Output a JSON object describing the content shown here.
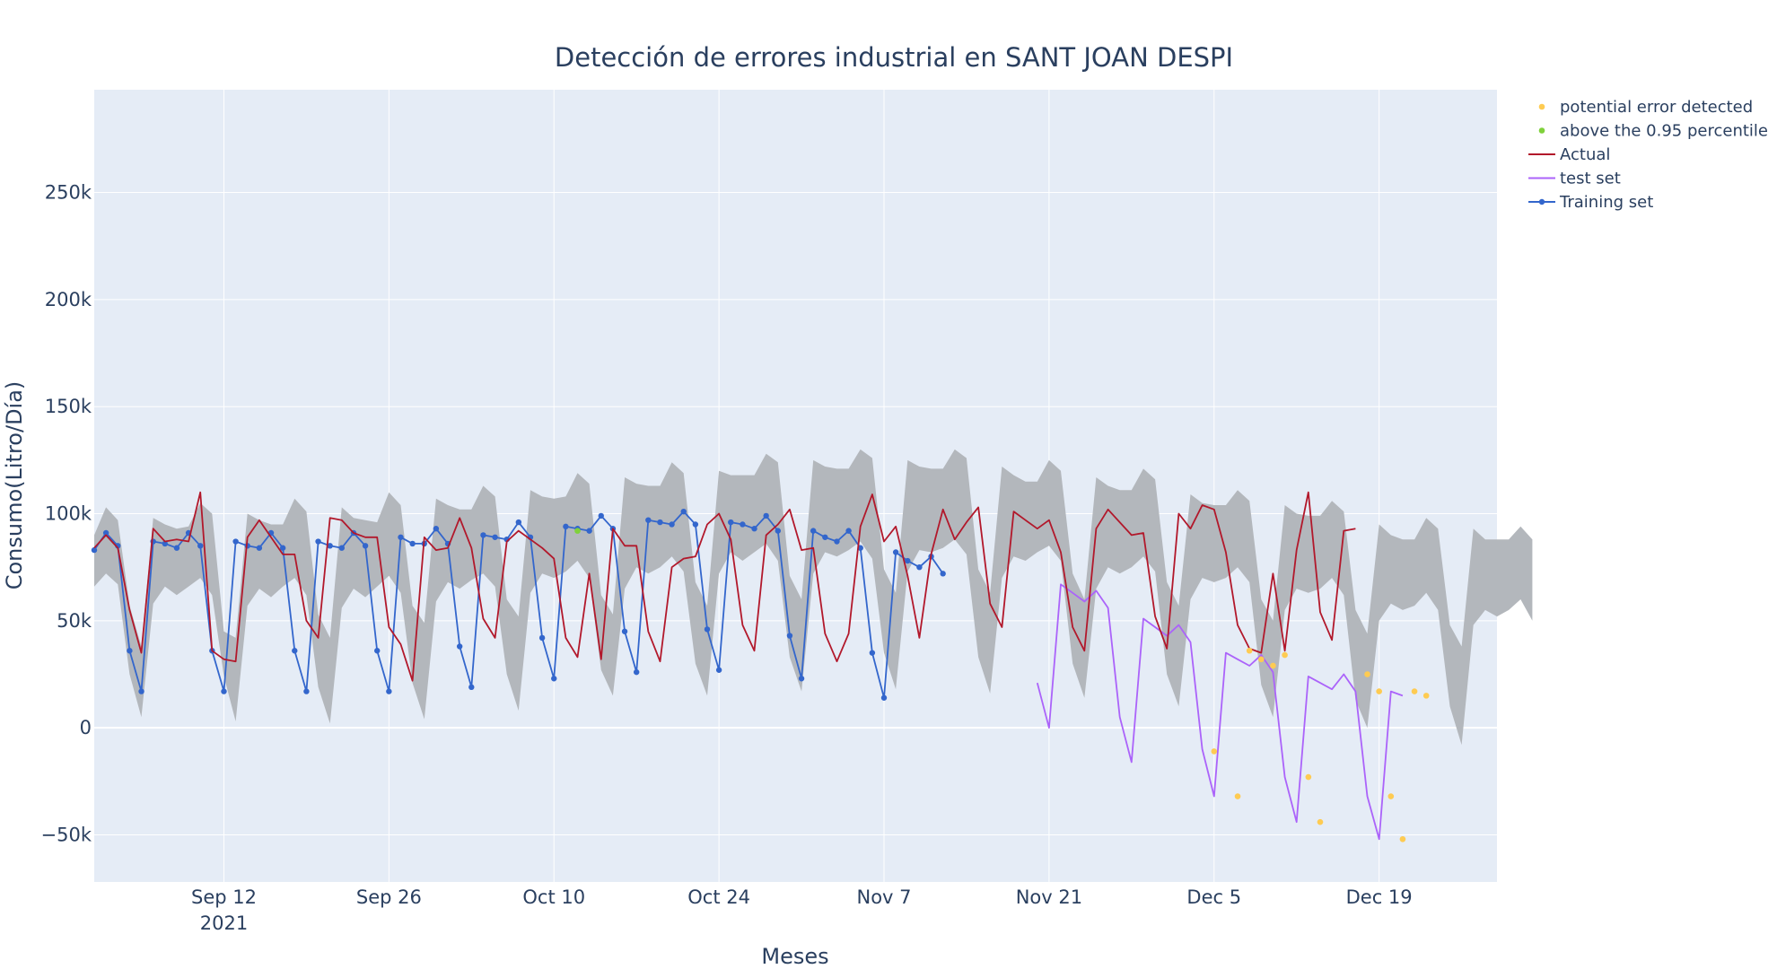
{
  "chart_data": {
    "type": "line",
    "title": "Detección de errores industrial en SANT JOAN DESPI",
    "xlabel": "Meses",
    "ylabel": "Consumo(Litro/Día)",
    "x_start": "2021-09-01",
    "x_range": [
      "2021-09-01",
      "2021-12-29"
    ],
    "ylim": [
      -72000,
      298000
    ],
    "x_ticks": [
      {
        "date": "2021-09-12",
        "label": "Sep 12",
        "sublabel": "2021"
      },
      {
        "date": "2021-09-26",
        "label": "Sep 26",
        "sublabel": ""
      },
      {
        "date": "2021-10-10",
        "label": "Oct 10",
        "sublabel": ""
      },
      {
        "date": "2021-10-24",
        "label": "Oct 24",
        "sublabel": ""
      },
      {
        "date": "2021-11-07",
        "label": "Nov 7",
        "sublabel": ""
      },
      {
        "date": "2021-11-21",
        "label": "Nov 21",
        "sublabel": ""
      },
      {
        "date": "2021-12-05",
        "label": "Dec 5",
        "sublabel": ""
      },
      {
        "date": "2021-12-19",
        "label": "Dec 19",
        "sublabel": ""
      }
    ],
    "y_ticks": [
      {
        "value": -50000,
        "label": "−50k"
      },
      {
        "value": 0,
        "label": "0"
      },
      {
        "value": 50000,
        "label": "50k"
      },
      {
        "value": 100000,
        "label": "100k"
      },
      {
        "value": 150000,
        "label": "150k"
      },
      {
        "value": 200000,
        "label": "200k"
      },
      {
        "value": 250000,
        "label": "250k"
      }
    ],
    "grid": true,
    "legend_position": "top-right outside",
    "colors": {
      "plot_bg": "#e5ecf6",
      "grid": "#ffffff",
      "band": "#b3b7bc",
      "actual": "#b2182b",
      "test": "#ab63fa",
      "training": "#3366cc",
      "error": "#fecb52",
      "percentile": "#7fd13b"
    },
    "band": {
      "name": "interval",
      "upper": [
        90000,
        103000,
        97000,
        57000,
        38000,
        98000,
        95000,
        93000,
        94000,
        105000,
        100000,
        45000,
        42000,
        100000,
        97000,
        95000,
        95000,
        107000,
        101000,
        53000,
        42000,
        103000,
        98000,
        97000,
        96000,
        110000,
        104000,
        57000,
        49000,
        107000,
        104000,
        102000,
        102000,
        113000,
        108000,
        60000,
        52000,
        111000,
        108000,
        107000,
        108000,
        119000,
        114000,
        62000,
        53000,
        117000,
        114000,
        113000,
        113000,
        124000,
        119000,
        68000,
        57000,
        120000,
        118000,
        118000,
        118000,
        128000,
        124000,
        71000,
        60000,
        125000,
        122000,
        121000,
        121000,
        130000,
        126000,
        74000,
        63000,
        125000,
        122000,
        121000,
        121000,
        130000,
        126000,
        74000,
        63000,
        122000,
        118000,
        115000,
        115000,
        125000,
        120000,
        72000,
        60000,
        117000,
        113000,
        111000,
        111000,
        121000,
        116000,
        68000,
        57000,
        109000,
        105000,
        104000,
        104000,
        111000,
        106000,
        60000,
        50000,
        104000,
        100000,
        99000,
        99000,
        106000,
        101000,
        55000,
        44000,
        95000,
        90000,
        88000,
        88000,
        98000,
        93000,
        48000,
        38000,
        93000,
        88000,
        88000,
        88000,
        94000,
        88000
      ],
      "lower": [
        66000,
        72000,
        67000,
        25000,
        5000,
        58000,
        66000,
        62000,
        66000,
        70000,
        62000,
        24000,
        3000,
        57000,
        65000,
        61000,
        66000,
        70000,
        62000,
        19000,
        2000,
        56000,
        65000,
        61000,
        66000,
        71000,
        63000,
        21000,
        4000,
        59000,
        68000,
        65000,
        69000,
        72000,
        66000,
        25000,
        8000,
        63000,
        72000,
        70000,
        73000,
        78000,
        70000,
        27000,
        15000,
        65000,
        75000,
        72000,
        75000,
        80000,
        73000,
        30000,
        15000,
        72000,
        82000,
        78000,
        82000,
        86000,
        78000,
        33000,
        17000,
        72000,
        82000,
        80000,
        83000,
        87000,
        79000,
        35000,
        18000,
        73000,
        83000,
        82000,
        84000,
        88000,
        81000,
        33000,
        16000,
        70000,
        80000,
        78000,
        82000,
        85000,
        78000,
        30000,
        14000,
        65000,
        75000,
        72000,
        75000,
        80000,
        73000,
        25000,
        10000,
        60000,
        70000,
        68000,
        70000,
        75000,
        68000,
        20000,
        5000,
        55000,
        65000,
        63000,
        65000,
        70000,
        62000,
        13000,
        0,
        50000,
        58000,
        55000,
        57000,
        63000,
        55000,
        10000,
        -8000,
        48000,
        55000,
        52000,
        55000,
        60000,
        50000
      ]
    },
    "series": [
      {
        "name": "Actual",
        "start": 0,
        "values": [
          84000,
          90000,
          84000,
          55000,
          35000,
          93000,
          87000,
          88000,
          87000,
          110000,
          36000,
          32000,
          31000,
          89000,
          97000,
          89000,
          81000,
          81000,
          50000,
          42000,
          98000,
          97000,
          91000,
          89000,
          89000,
          47000,
          39000,
          22000,
          89000,
          83000,
          84000,
          98000,
          84000,
          51000,
          42000,
          87000,
          92000,
          88000,
          84000,
          79000,
          42000,
          33000,
          72000,
          32000,
          93000,
          85000,
          85000,
          45000,
          31000,
          75000,
          79000,
          80000,
          95000,
          100000,
          88000,
          48000,
          36000,
          90000,
          95000,
          102000,
          83000,
          84000,
          44000,
          31000,
          44000,
          94000,
          109000,
          87000,
          94000,
          71000,
          42000,
          81000,
          102000,
          88000,
          96000,
          103000,
          58000,
          47000,
          101000,
          97000,
          93000,
          97000,
          82000,
          47000,
          36000,
          93000,
          102000,
          96000,
          90000,
          91000,
          52000,
          37000,
          100000,
          93000,
          104000,
          102000,
          82000,
          48000,
          37000,
          35000,
          72000,
          36000,
          83000,
          110000,
          54000,
          41000,
          92000,
          93000
        ]
      },
      {
        "name": "test set",
        "start": 80,
        "values": [
          21000,
          0,
          67000,
          63000,
          59000,
          64000,
          56000,
          5000,
          -16000,
          51000,
          47000,
          43000,
          48000,
          40000,
          -10000,
          -32000,
          35000,
          32000,
          29000,
          34000,
          26000,
          -23000,
          -44000,
          24000,
          21000,
          18000,
          25000,
          17000,
          -32000,
          -52000,
          17000,
          15000
        ]
      },
      {
        "name": "Training set",
        "start": 0,
        "values": [
          83000,
          91000,
          85000,
          36000,
          17000,
          87000,
          86000,
          84000,
          91000,
          85000,
          36000,
          17000,
          87000,
          85000,
          84000,
          91000,
          84000,
          36000,
          17000,
          87000,
          85000,
          84000,
          91000,
          85000,
          36000,
          17000,
          89000,
          86000,
          86000,
          93000,
          86000,
          38000,
          19000,
          90000,
          89000,
          88000,
          96000,
          89000,
          42000,
          23000,
          94000,
          93000,
          92000,
          99000,
          93000,
          45000,
          26000,
          97000,
          96000,
          95000,
          101000,
          95000,
          46000,
          27000,
          96000,
          95000,
          93000,
          99000,
          92000,
          43000,
          23000,
          92000,
          89000,
          87000,
          92000,
          84000,
          35000,
          14000,
          82000,
          78000,
          75000,
          80000,
          72000
        ]
      }
    ],
    "markers": [
      {
        "name": "potential error detected",
        "points": [
          [
            95,
            -11000
          ],
          [
            97,
            -32000
          ],
          [
            98,
            36000
          ],
          [
            99,
            32000
          ],
          [
            100,
            29000
          ],
          [
            101,
            34000
          ],
          [
            103,
            -23000
          ],
          [
            104,
            -44000
          ],
          [
            108,
            25000
          ],
          [
            109,
            17000
          ],
          [
            110,
            -32000
          ],
          [
            111,
            -52000
          ],
          [
            112,
            17000
          ],
          [
            113,
            15000
          ]
        ]
      },
      {
        "name": "above the 0.95 percentile",
        "points": [
          [
            41,
            92000
          ]
        ]
      }
    ]
  }
}
